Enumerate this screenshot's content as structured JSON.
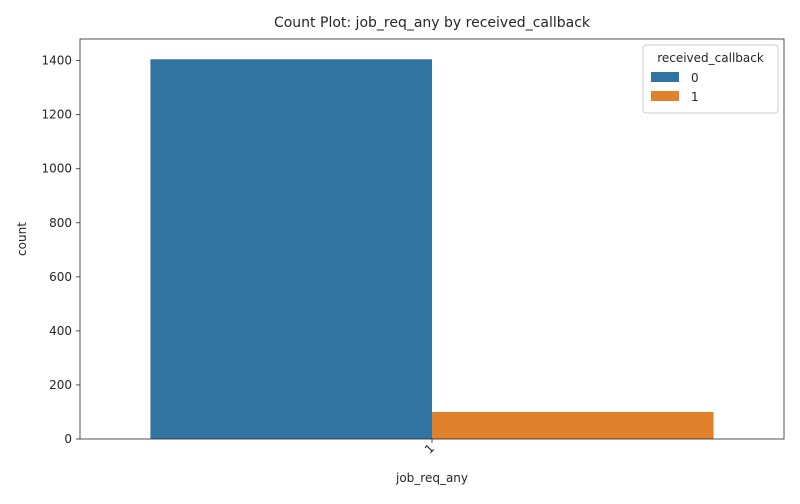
{
  "chart_data": {
    "type": "bar",
    "title": "Count Plot: job_req_any by received_callback",
    "xlabel": "job_req_any",
    "ylabel": "count",
    "categories": [
      "1"
    ],
    "ylim": [
      0,
      1480
    ],
    "yticks": [
      0,
      200,
      400,
      600,
      800,
      1000,
      1200,
      1400
    ],
    "grid": false,
    "legend": {
      "title": "received_callback",
      "placement": "top-right"
    },
    "series": [
      {
        "name": "0",
        "color": "#3274a1",
        "values": [
          1405
        ]
      },
      {
        "name": "1",
        "color": "#e1812c",
        "values": [
          100
        ]
      }
    ]
  }
}
